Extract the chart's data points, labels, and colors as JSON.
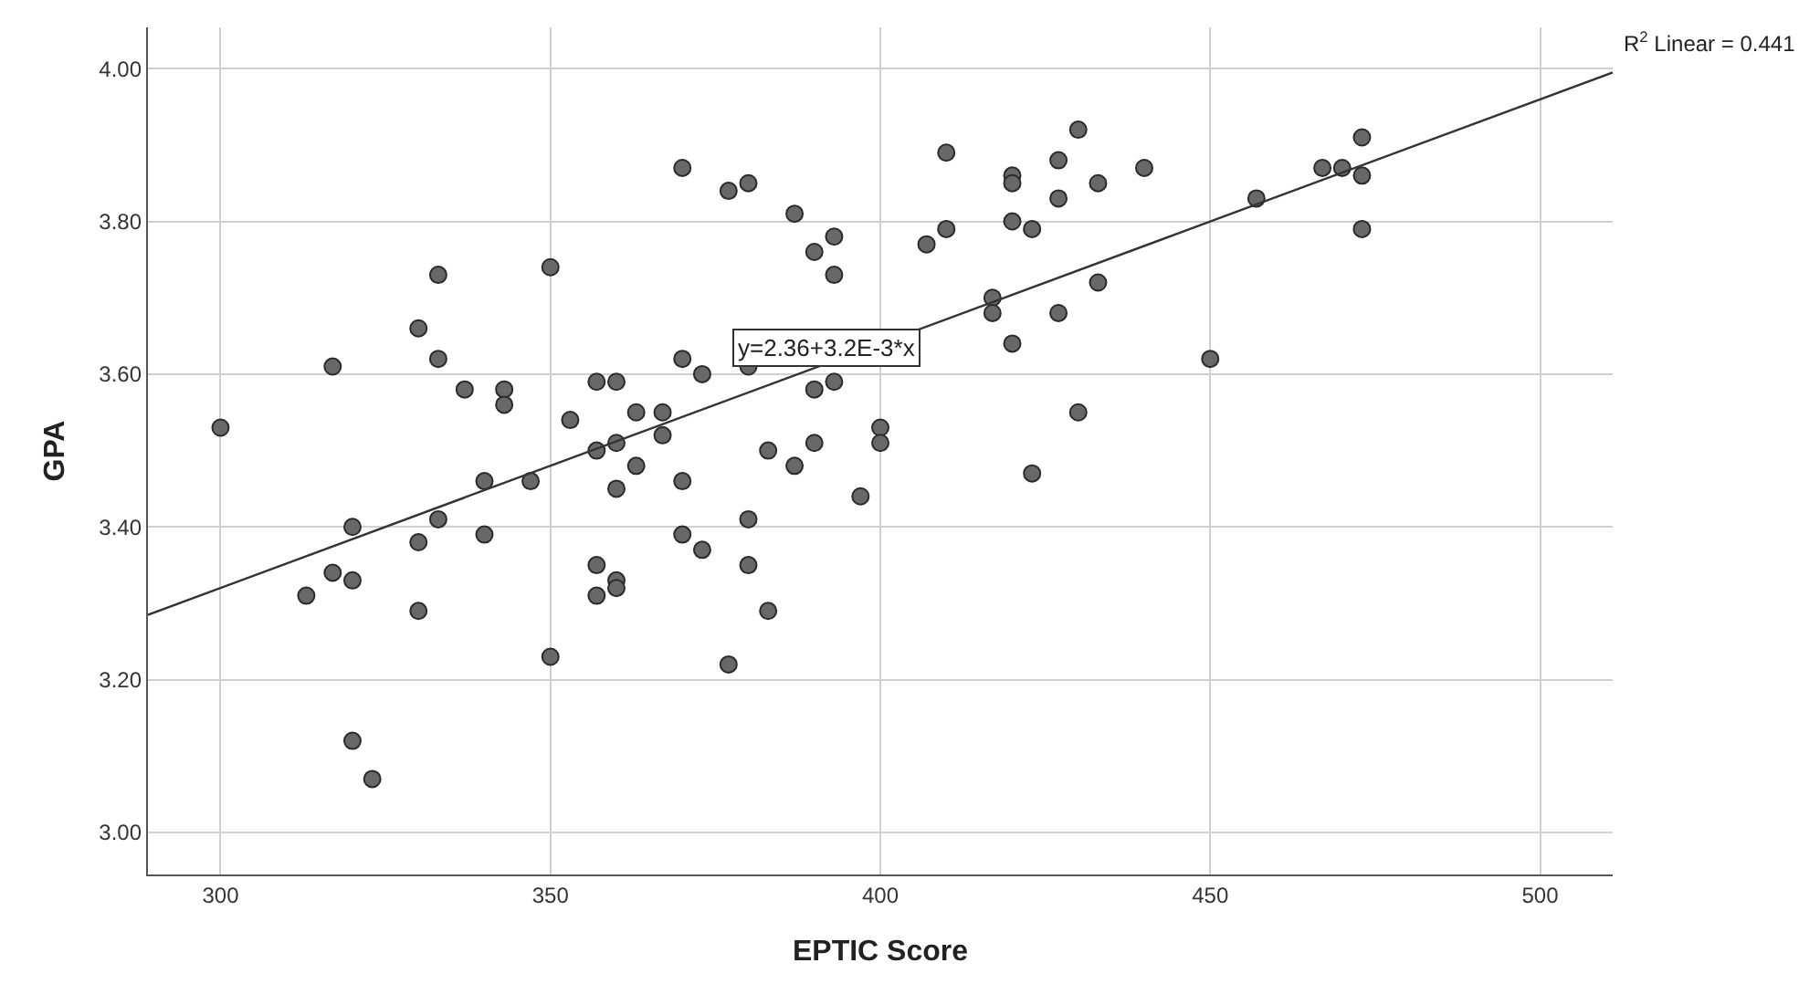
{
  "chart_data": {
    "type": "scatter",
    "xlabel": "EPTIC Score",
    "ylabel": "GPA",
    "x": [
      300,
      317,
      333,
      330,
      333,
      337,
      343,
      343,
      350,
      353,
      357,
      360,
      363,
      357,
      360,
      370,
      377,
      380,
      387,
      390,
      393,
      393,
      410,
      407,
      410,
      420,
      420,
      427,
      430,
      427,
      433,
      420,
      423,
      417,
      417,
      433,
      427,
      420,
      370,
      373,
      380,
      390,
      393,
      430,
      367,
      367,
      383,
      390,
      400,
      400,
      363,
      387,
      397,
      423,
      370,
      380,
      370,
      373,
      380,
      383,
      377,
      360,
      360,
      360,
      340,
      347,
      320,
      333,
      330,
      340,
      317,
      320,
      313,
      330,
      357,
      357,
      350,
      320,
      323,
      440,
      457,
      467,
      470,
      473,
      473,
      473,
      450
    ],
    "series": [
      {
        "color": "#686868",
        "marker": "circle",
        "values": [
          3.53,
          3.61,
          3.73,
          3.66,
          3.62,
          3.58,
          3.58,
          3.56,
          3.74,
          3.54,
          3.59,
          3.59,
          3.55,
          3.5,
          3.51,
          3.87,
          3.84,
          3.85,
          3.81,
          3.76,
          3.78,
          3.73,
          3.89,
          3.77,
          3.79,
          3.86,
          3.85,
          3.88,
          3.92,
          3.83,
          3.85,
          3.8,
          3.79,
          3.7,
          3.68,
          3.72,
          3.68,
          3.64,
          3.62,
          3.6,
          3.61,
          3.58,
          3.59,
          3.55,
          3.55,
          3.52,
          3.5,
          3.51,
          3.53,
          3.51,
          3.48,
          3.48,
          3.44,
          3.47,
          3.46,
          3.41,
          3.39,
          3.37,
          3.35,
          3.29,
          3.22,
          3.45,
          3.33,
          3.32,
          3.46,
          3.46,
          3.4,
          3.41,
          3.38,
          3.39,
          3.34,
          3.33,
          3.31,
          3.29,
          3.35,
          3.31,
          3.23,
          3.12,
          3.07,
          3.87,
          3.83,
          3.87,
          3.87,
          3.91,
          3.86,
          3.79,
          3.62
        ]
      },
      {
        "type": "line",
        "color": "#333333",
        "x": [
          289,
          511
        ],
        "values": [
          3.285,
          3.995
        ]
      }
    ],
    "xlim": [
      289,
      511
    ],
    "ylim": [
      2.945,
      4.054
    ],
    "xticks": [
      300,
      350,
      400,
      450,
      500
    ],
    "yticks": [
      {
        "value": 3.0,
        "label": "3.00"
      },
      {
        "value": 3.2,
        "label": "3.20"
      },
      {
        "value": 3.4,
        "label": "3.40"
      },
      {
        "value": 3.6,
        "label": "3.60"
      },
      {
        "value": 3.8,
        "label": "3.80"
      },
      {
        "value": 4.0,
        "label": "4.00"
      }
    ],
    "grid": true,
    "annotations": [
      "y=2.36+3.2E-3*x",
      "R$^{2}$ Linear = 0.441"
    ]
  }
}
